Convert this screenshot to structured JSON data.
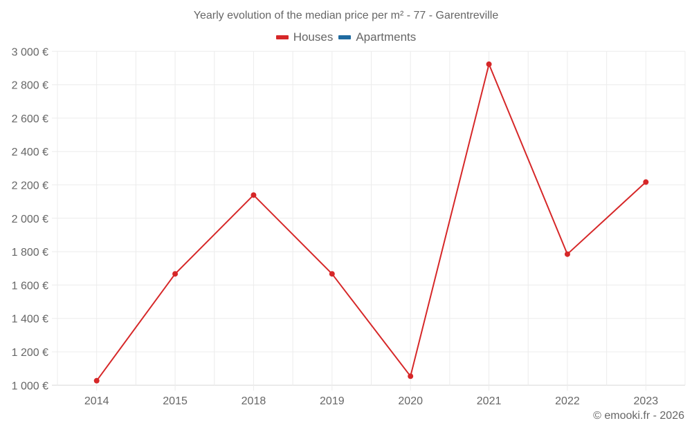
{
  "chart_data": {
    "type": "line",
    "title": "Yearly evolution of the median price per m² - 77 - Garentreville",
    "categories": [
      "2014",
      "2015",
      "2018",
      "2019",
      "2020",
      "2021",
      "2022",
      "2023"
    ],
    "series": [
      {
        "name": "Houses",
        "color": "#d62728",
        "values": [
          1027,
          1667,
          2139,
          1667,
          1054,
          2923,
          1785,
          2217
        ]
      },
      {
        "name": "Apartments",
        "color": "#1f6aa0",
        "values": []
      }
    ],
    "xlabel": "",
    "ylabel": "",
    "ylim": [
      1000,
      3000
    ],
    "yticks": [
      1000,
      1200,
      1400,
      1600,
      1800,
      2000,
      2200,
      2400,
      2600,
      2800,
      3000
    ],
    "ytick_labels": [
      "1 000 €",
      "1 200 €",
      "1 400 €",
      "1 600 €",
      "1 800 €",
      "2 000 €",
      "2 200 €",
      "2 400 €",
      "2 600 €",
      "2 800 €",
      "3 000 €"
    ],
    "grid": true,
    "legend_position": "top"
  },
  "header": {
    "title": "Yearly evolution of the median price per m² - 77 - Garentreville"
  },
  "legend": {
    "items": [
      {
        "label": "Houses",
        "color": "#d62728"
      },
      {
        "label": "Apartments",
        "color": "#1f6aa0"
      }
    ]
  },
  "footer": {
    "credit": "© emooki.fr - 2026"
  }
}
